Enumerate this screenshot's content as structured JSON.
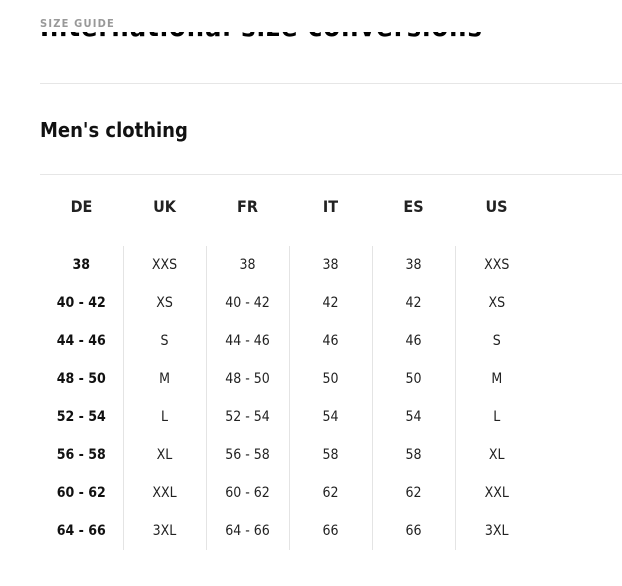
{
  "header": {
    "eyebrow": "SIZE GUIDE",
    "title": "International size conversions"
  },
  "section": {
    "title": "Men's clothing"
  },
  "table": {
    "columns": [
      "DE",
      "UK",
      "FR",
      "IT",
      "ES",
      "US"
    ],
    "rows": [
      [
        "38",
        "XXS",
        "38",
        "38",
        "38",
        "XXS"
      ],
      [
        "40 - 42",
        "XS",
        "40 - 42",
        "42",
        "42",
        "XS"
      ],
      [
        "44 - 46",
        "S",
        "44 - 46",
        "46",
        "46",
        "S"
      ],
      [
        "48 - 50",
        "M",
        "48 - 50",
        "50",
        "50",
        "M"
      ],
      [
        "52 - 54",
        "L",
        "52 - 54",
        "54",
        "54",
        "L"
      ],
      [
        "56 - 58",
        "XL",
        "56 - 58",
        "58",
        "58",
        "XL"
      ],
      [
        "60 - 62",
        "XXL",
        "60 - 62",
        "62",
        "62",
        "XXL"
      ],
      [
        "64 - 66",
        "3XL",
        "64 - 66",
        "66",
        "66",
        "3XL"
      ]
    ]
  }
}
